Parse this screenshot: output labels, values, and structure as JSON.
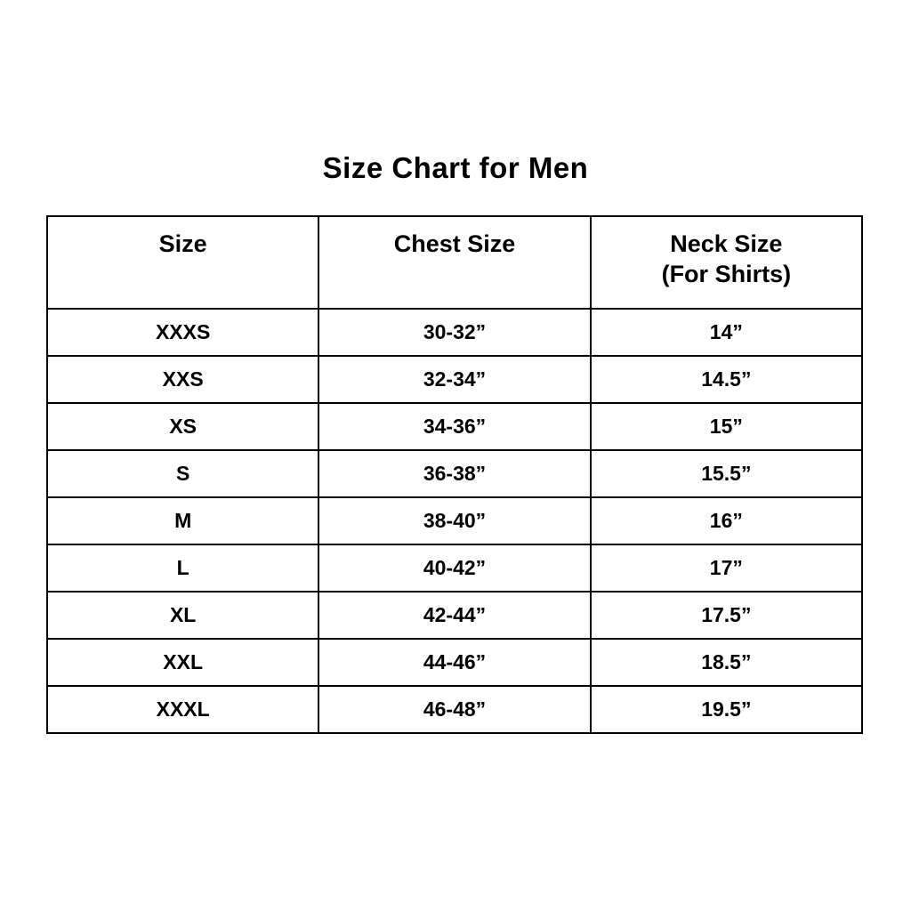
{
  "page": {
    "title": "Size Chart for Men"
  },
  "colors": {
    "background": "#ffffff",
    "text": "#000000",
    "border": "#000000"
  },
  "table": {
    "headers": {
      "size": "Size",
      "chest": "Chest Size",
      "neck_line1": "Neck Size",
      "neck_line2": "(For Shirts)"
    },
    "rows": [
      {
        "size": "XXXS",
        "chest": "30-32”",
        "neck": "14”"
      },
      {
        "size": "XXS",
        "chest": "32-34”",
        "neck": "14.5”"
      },
      {
        "size": "XS",
        "chest": "34-36”",
        "neck": "15”"
      },
      {
        "size": "S",
        "chest": "36-38”",
        "neck": "15.5”"
      },
      {
        "size": "M",
        "chest": "38-40”",
        "neck": "16”"
      },
      {
        "size": "L",
        "chest": "40-42”",
        "neck": "17”"
      },
      {
        "size": "XL",
        "chest": "42-44”",
        "neck": "17.5”"
      },
      {
        "size": "XXL",
        "chest": "44-46”",
        "neck": "18.5”"
      },
      {
        "size": "XXXL",
        "chest": "46-48”",
        "neck": "19.5”"
      }
    ]
  },
  "chart_data": {
    "type": "table",
    "title": "Size Chart for Men",
    "columns": [
      "Size",
      "Chest Size",
      "Neck Size (For Shirts)"
    ],
    "rows": [
      [
        "XXXS",
        "30-32”",
        "14”"
      ],
      [
        "XXS",
        "32-34”",
        "14.5”"
      ],
      [
        "XS",
        "34-36”",
        "15”"
      ],
      [
        "S",
        "36-38”",
        "15.5”"
      ],
      [
        "M",
        "38-40”",
        "16”"
      ],
      [
        "L",
        "40-42”",
        "17”"
      ],
      [
        "XL",
        "42-44”",
        "17.5”"
      ],
      [
        "XXL",
        "44-46”",
        "18.5”"
      ],
      [
        "XXXL",
        "46-48”",
        "19.5”"
      ]
    ]
  }
}
